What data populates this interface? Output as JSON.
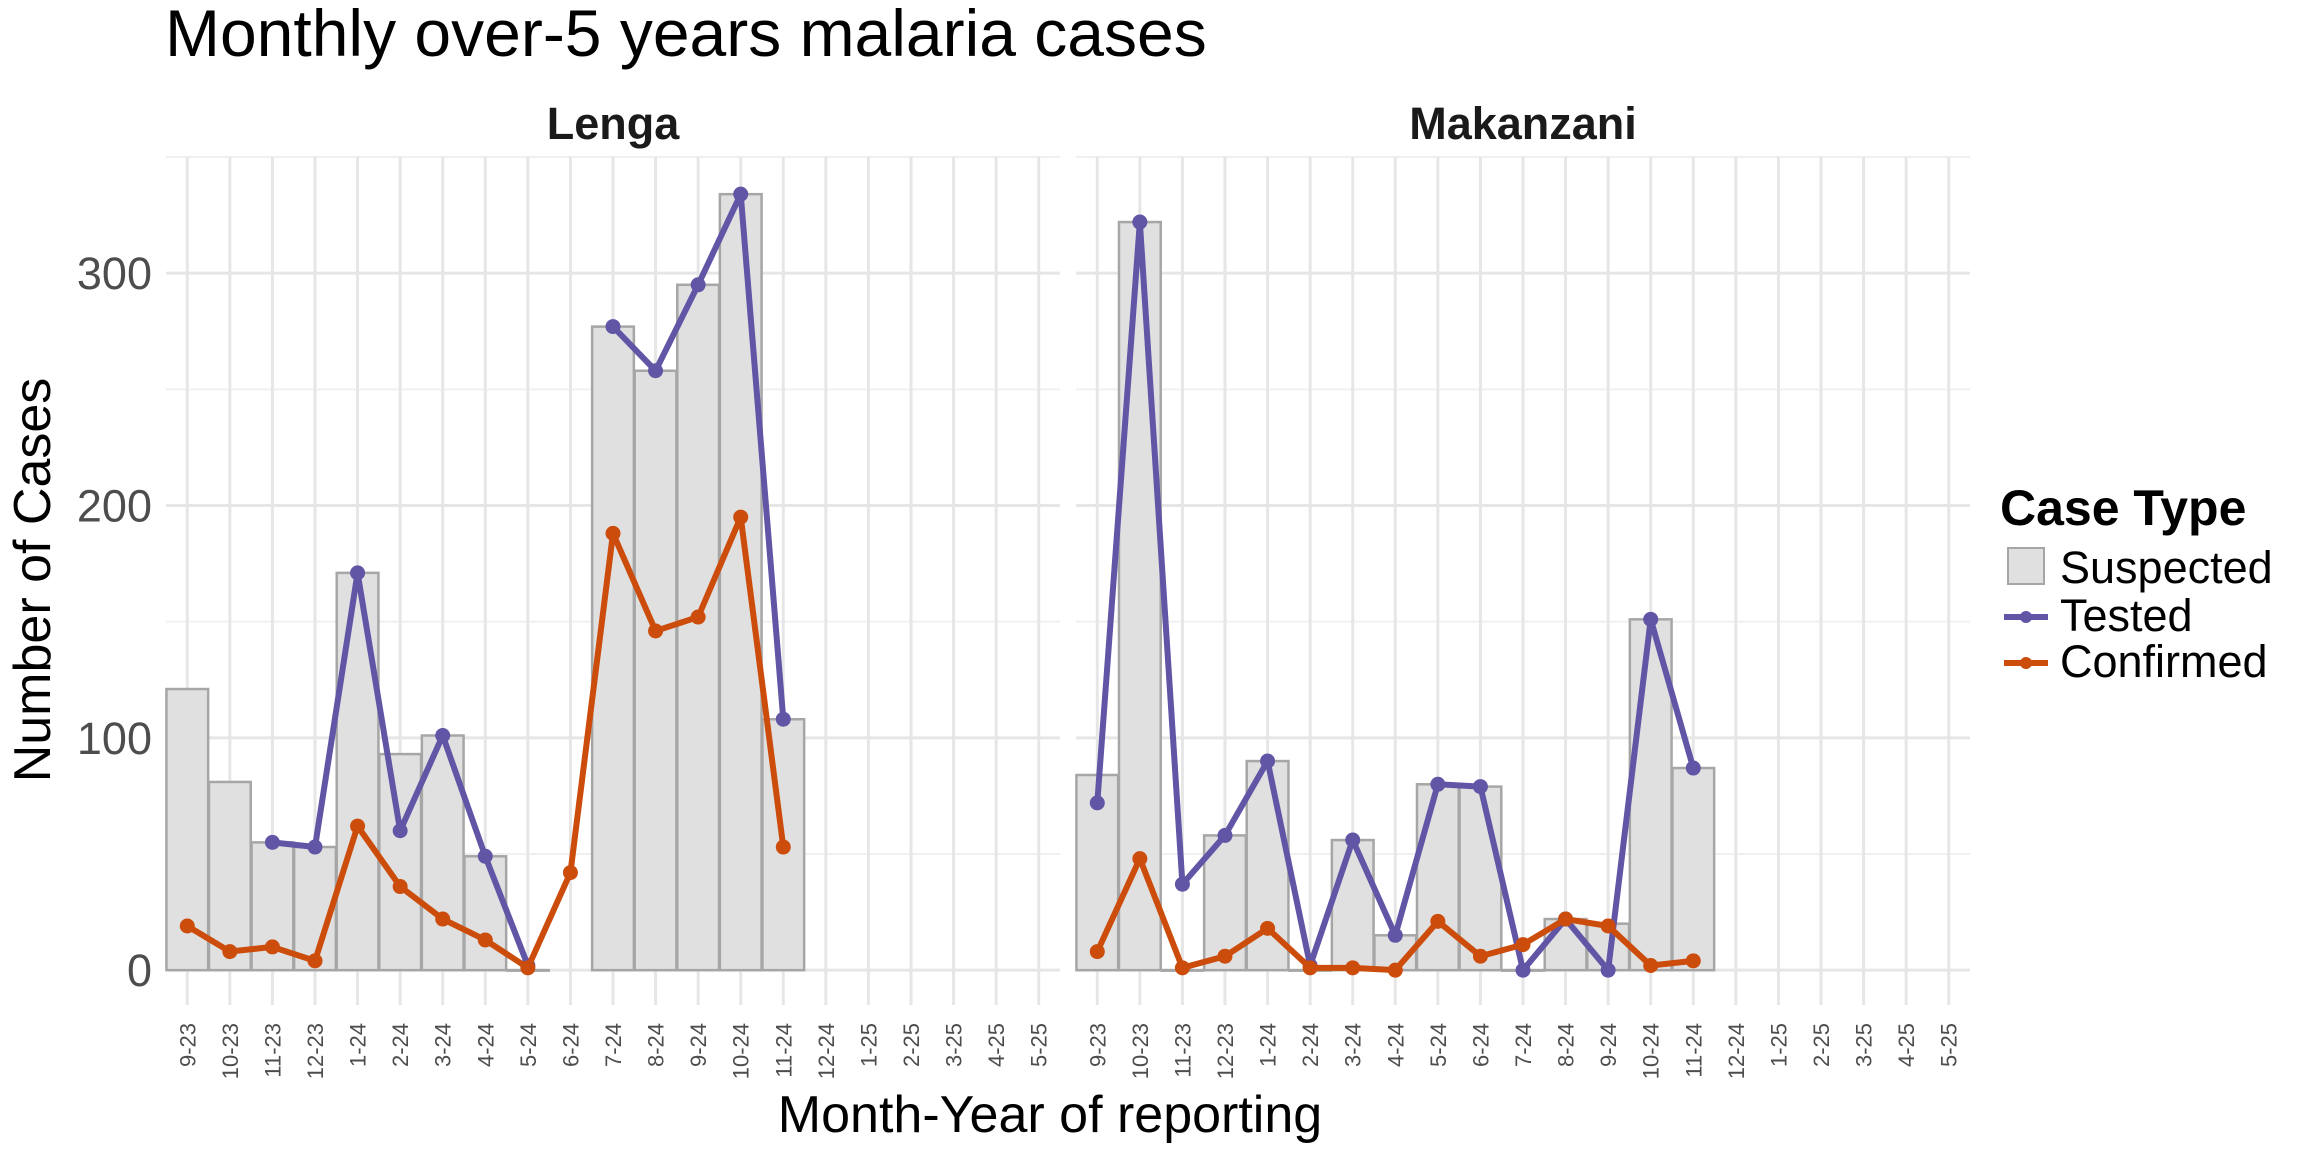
{
  "chart_data": {
    "type": "bar",
    "title": "Monthly over-5 years malaria cases",
    "xlabel": "Month-Year of reporting",
    "ylabel": "Number of Cases",
    "ylim": [
      -15,
      350
    ],
    "yticks": [
      0,
      100,
      200,
      300
    ],
    "grid": true,
    "legend_position": "right",
    "categories": [
      "9-23",
      "10-23",
      "11-23",
      "12-23",
      "1-24",
      "2-24",
      "3-24",
      "4-24",
      "5-24",
      "6-24",
      "7-24",
      "8-24",
      "9-24",
      "10-24",
      "11-24",
      "12-24",
      "1-25",
      "2-25",
      "3-25",
      "4-25",
      "5-25"
    ],
    "legend": {
      "title": "Case Type",
      "items": [
        {
          "label": "Suspected",
          "kind": "bar",
          "color": "#e0e0e0"
        },
        {
          "label": "Tested",
          "kind": "line",
          "color": "#6155a6"
        },
        {
          "label": "Confirmed",
          "kind": "line",
          "color": "#cc4c0c"
        }
      ]
    },
    "colors": {
      "suspected_fill": "#e0e0e0",
      "suspected_stroke": "#a6a6a6",
      "tested": "#6155a6",
      "confirmed": "#cc4c0c"
    },
    "panels": [
      {
        "name": "Lenga",
        "series": [
          {
            "name": "Suspected",
            "type": "bar",
            "values": [
              121,
              81,
              55,
              53,
              171,
              93,
              101,
              49,
              0,
              null,
              277,
              258,
              295,
              334,
              108,
              null,
              null,
              null,
              null,
              null,
              null
            ]
          },
          {
            "name": "Tested",
            "type": "line",
            "values": [
              null,
              null,
              55,
              53,
              171,
              60,
              101,
              49,
              2,
              null,
              277,
              258,
              295,
              334,
              108,
              null,
              null,
              null,
              null,
              null,
              null
            ]
          },
          {
            "name": "Confirmed",
            "type": "line",
            "values": [
              19,
              8,
              10,
              4,
              62,
              36,
              22,
              13,
              1,
              42,
              188,
              146,
              152,
              195,
              53,
              null,
              null,
              null,
              null,
              null,
              null
            ]
          }
        ]
      },
      {
        "name": "Makanzani",
        "series": [
          {
            "name": "Suspected",
            "type": "bar",
            "values": [
              84,
              322,
              0,
              58,
              90,
              0,
              56,
              15,
              80,
              79,
              0,
              22,
              20,
              151,
              87,
              null,
              null,
              null,
              null,
              null,
              null
            ]
          },
          {
            "name": "Tested",
            "type": "line",
            "values": [
              72,
              322,
              37,
              58,
              90,
              2,
              56,
              15,
              80,
              79,
              0,
              22,
              0,
              151,
              87,
              null,
              null,
              null,
              null,
              null,
              null
            ]
          },
          {
            "name": "Confirmed",
            "type": "line",
            "values": [
              8,
              48,
              1,
              6,
              18,
              1,
              1,
              0,
              21,
              6,
              11,
              22,
              19,
              2,
              4,
              null,
              null,
              null,
              null,
              null,
              null
            ]
          }
        ]
      }
    ]
  }
}
